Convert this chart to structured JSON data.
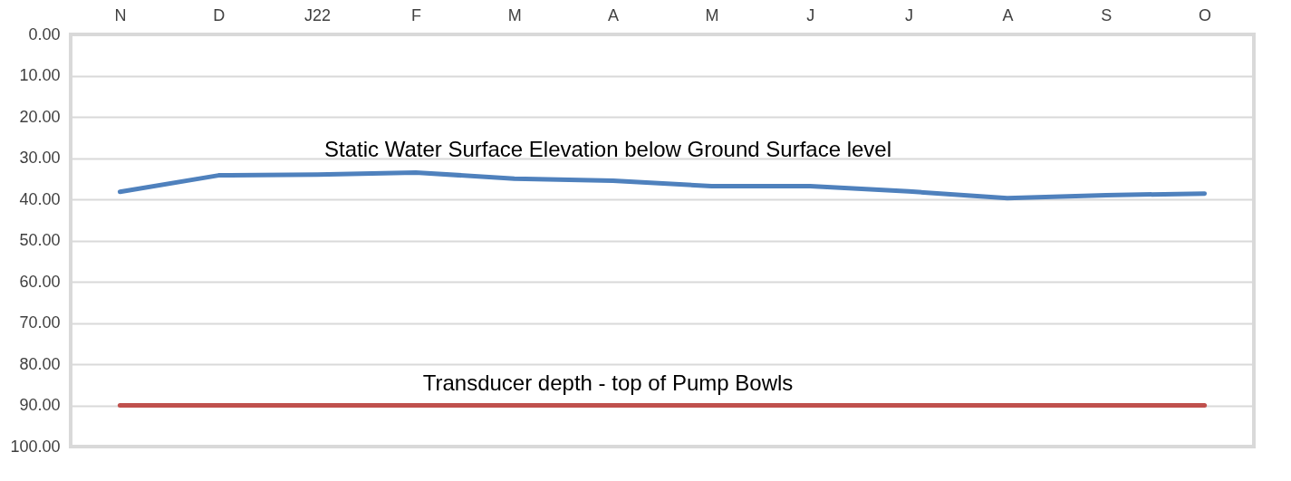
{
  "chart_data": {
    "type": "line",
    "categories": [
      "N",
      "D",
      "J22",
      "F",
      "M",
      "A",
      "M",
      "J",
      "J",
      "A",
      "S",
      "O"
    ],
    "series": [
      {
        "name": "Static Water Surface Elevation below Ground Surface level",
        "color": "#4f81bd",
        "values": [
          38.2,
          34.2,
          34.0,
          33.5,
          35.0,
          35.5,
          36.8,
          36.8,
          38.1,
          39.7,
          39.0,
          38.6
        ]
      },
      {
        "name": "Transducer depth  - top of Pump Bowls",
        "color": "#c0504d",
        "values": [
          90,
          90,
          90,
          90,
          90,
          90,
          90,
          90,
          90,
          90,
          90,
          90
        ]
      }
    ],
    "ylim": [
      100,
      0
    ],
    "yticks": [
      {
        "value": 0,
        "label": "0.00"
      },
      {
        "value": 10,
        "label": "10.00"
      },
      {
        "value": 20,
        "label": "20.00"
      },
      {
        "value": 30,
        "label": "30.00"
      },
      {
        "value": 40,
        "label": "40.00"
      },
      {
        "value": 50,
        "label": "50.00"
      },
      {
        "value": 60,
        "label": "60.00"
      },
      {
        "value": 70,
        "label": "70.00"
      },
      {
        "value": 80,
        "label": "80.00"
      },
      {
        "value": 90,
        "label": "90.00"
      },
      {
        "value": 100,
        "label": "100.00"
      }
    ],
    "grid": "y",
    "legend": false,
    "marker": "none",
    "line_style": "solid"
  }
}
